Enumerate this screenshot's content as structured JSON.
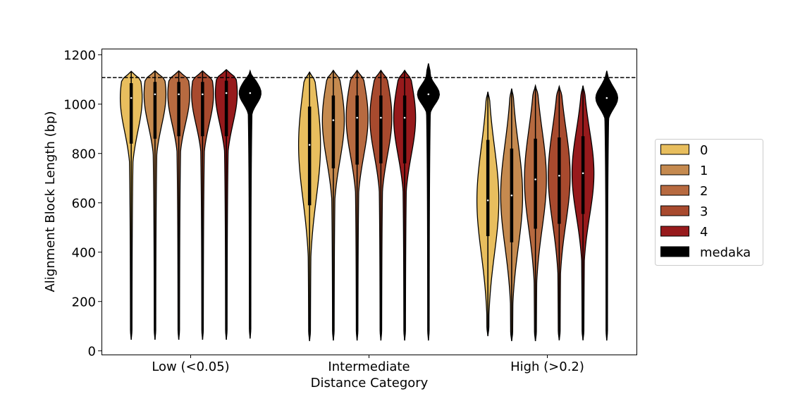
{
  "chart_data": {
    "type": "violin",
    "title": "",
    "xlabel": "Distance Category",
    "ylabel": "Alignment Block Length (bp)",
    "ylim": [
      -15,
      1225
    ],
    "yticks": [
      0,
      200,
      400,
      600,
      800,
      1000,
      1200
    ],
    "categories": [
      "Low (<0.05)",
      "Intermediate",
      "High (>0.2)"
    ],
    "reference_line": {
      "y": 1108,
      "style": "dashed",
      "color": "#000000"
    },
    "legend": {
      "placement": "outside-right"
    },
    "series": [
      {
        "name": "0",
        "color": "#E8BE5E",
        "values": [
          {
            "min": 45,
            "max": 1133,
            "q1": 840,
            "median": 1025,
            "q3": 1085
          },
          {
            "min": 40,
            "max": 1130,
            "q1": 590,
            "median": 835,
            "q3": 990
          },
          {
            "min": 60,
            "max": 1050,
            "q1": 465,
            "median": 610,
            "q3": 855
          }
        ]
      },
      {
        "name": "1",
        "color": "#C58A4F",
        "values": [
          {
            "min": 45,
            "max": 1135,
            "q1": 860,
            "median": 1040,
            "q3": 1090
          },
          {
            "min": 42,
            "max": 1137,
            "q1": 740,
            "median": 935,
            "q3": 1035
          },
          {
            "min": 40,
            "max": 1063,
            "q1": 440,
            "median": 630,
            "q3": 820
          }
        ]
      },
      {
        "name": "2",
        "color": "#B76A40",
        "values": [
          {
            "min": 45,
            "max": 1135,
            "q1": 870,
            "median": 1040,
            "q3": 1090
          },
          {
            "min": 42,
            "max": 1137,
            "q1": 755,
            "median": 945,
            "q3": 1035
          },
          {
            "min": 40,
            "max": 1075,
            "q1": 495,
            "median": 695,
            "q3": 860
          }
        ]
      },
      {
        "name": "3",
        "color": "#A84A2E",
        "values": [
          {
            "min": 45,
            "max": 1135,
            "q1": 870,
            "median": 1040,
            "q3": 1090
          },
          {
            "min": 42,
            "max": 1137,
            "q1": 760,
            "median": 945,
            "q3": 1035
          },
          {
            "min": 43,
            "max": 1072,
            "q1": 515,
            "median": 710,
            "q3": 865
          }
        ]
      },
      {
        "name": "4",
        "color": "#971A1C",
        "values": [
          {
            "min": 45,
            "max": 1140,
            "q1": 870,
            "median": 1045,
            "q3": 1095
          },
          {
            "min": 42,
            "max": 1137,
            "q1": 760,
            "median": 945,
            "q3": 1035
          },
          {
            "min": 43,
            "max": 1075,
            "q1": 555,
            "median": 720,
            "q3": 870
          }
        ]
      },
      {
        "name": "medaka",
        "color": "#000000",
        "values": [
          {
            "min": 50,
            "max": 1135,
            "q1": 1010,
            "median": 1045,
            "q3": 1090
          },
          {
            "min": 42,
            "max": 1165,
            "q1": 1015,
            "median": 1040,
            "q3": 1080
          },
          {
            "min": 42,
            "max": 1135,
            "q1": 990,
            "median": 1025,
            "q3": 1070
          }
        ]
      }
    ]
  }
}
